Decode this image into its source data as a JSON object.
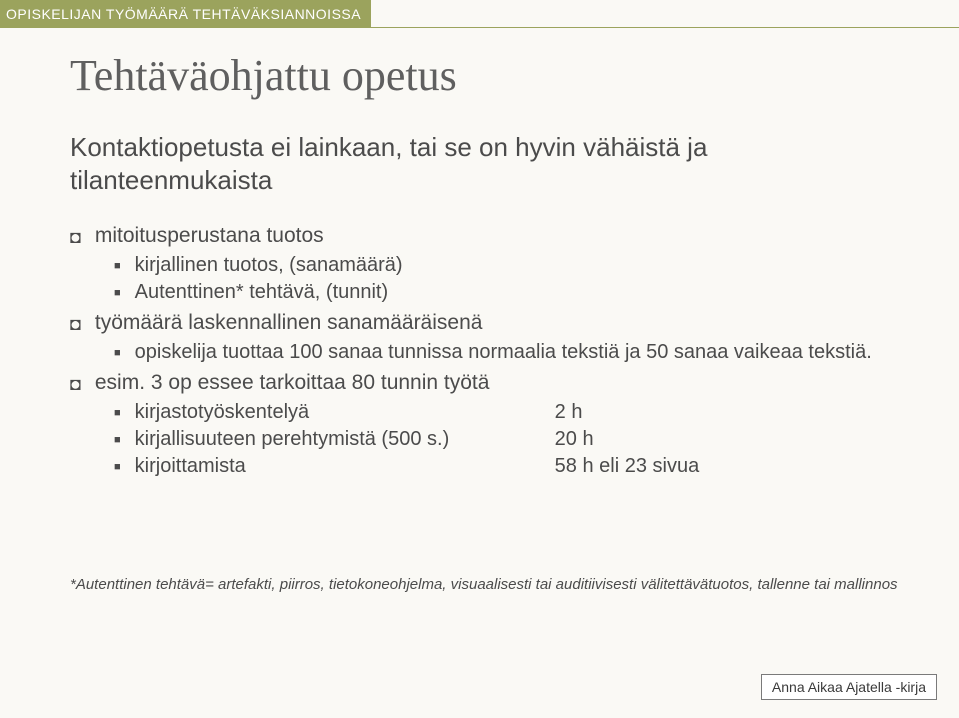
{
  "header": {
    "label": "OPISKELIJAN TYÖMÄÄRÄ TEHTÄVÄKSIANNOISSA",
    "bg_color": "#9ba35d",
    "text_color": "#ffffff"
  },
  "slide": {
    "title": "Tehtäväohjattu opetus",
    "subtitle": "Kontaktiopetusta ei lainkaan, tai se on hyvin vähäistä ja tilanteenmukaista",
    "title_color": "#5f5f5f",
    "body_color": "#4b4b4b",
    "title_font": "Times New Roman",
    "body_font": "Arial",
    "title_fontsize": 44,
    "subtitle_fontsize": 26,
    "lvl1_fontsize": 21,
    "lvl2_fontsize": 20,
    "bullets": [
      {
        "text": "mitoitusperustana tuotos",
        "children": [
          {
            "text": "kirjallinen tuotos, (sanamäärä)"
          },
          {
            "text": "Autenttinen* tehtävä, (tunnit)"
          }
        ]
      },
      {
        "text": "työmäärä laskennallinen sanamääräisenä",
        "children": [
          {
            "text": "opiskelija tuottaa 100 sanaa tunnissa normaalia tekstiä ja 50 sanaa vaikeaa tekstiä."
          }
        ]
      },
      {
        "text": "esim. 3 op essee tarkoittaa 80 tunnin työtä",
        "children": [
          {
            "label": "kirjastotyöskentelyä",
            "value": "2 h"
          },
          {
            "label": "kirjallisuuteen perehtymistä (500 s.)",
            "value": "20 h"
          },
          {
            "label": "kirjoittamista",
            "value": "58 h eli 23 sivua"
          }
        ]
      }
    ]
  },
  "footnote": "*Autenttinen tehtävä= artefakti, piirros, tietokoneohjelma, visuaalisesti tai auditiivisesti välitettävätuotos, tallenne tai mallinnos",
  "citation": "Anna Aikaa Ajatella -kirja",
  "page_bg": "#faf9f5"
}
